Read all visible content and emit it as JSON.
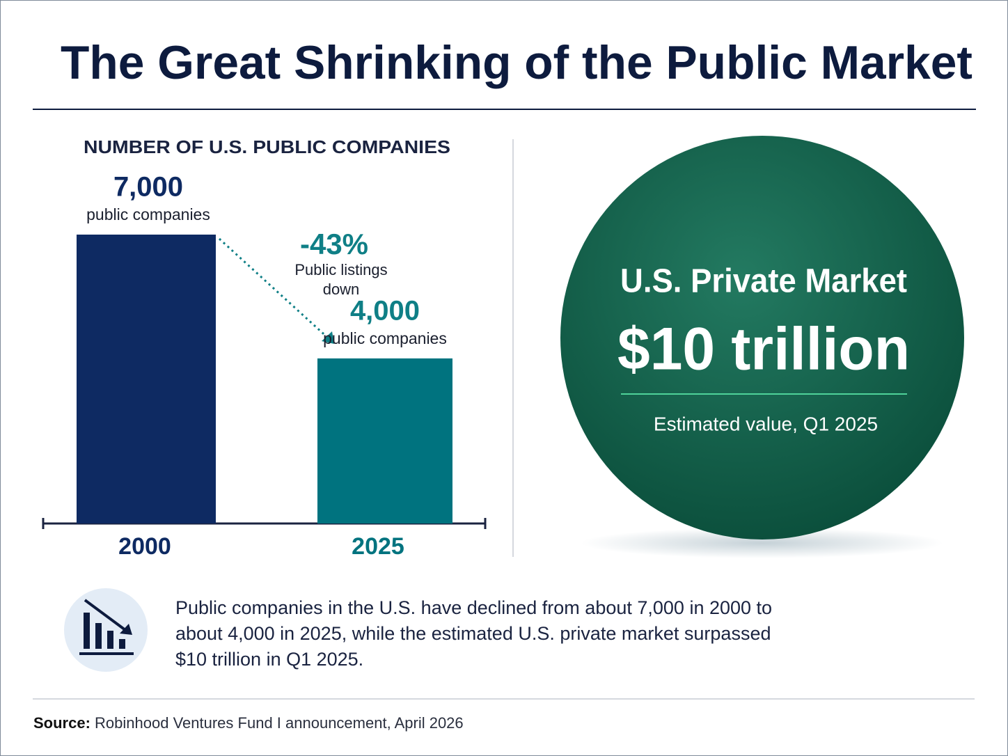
{
  "title": "The Great Shrinking of the Public Market",
  "chart_data": {
    "type": "bar",
    "title": "NUMBER OF U.S. PUBLIC COMPANIES",
    "categories": [
      "2000",
      "2025"
    ],
    "values": [
      7000,
      4000
    ],
    "value_labels": [
      "7,000",
      "4,000"
    ],
    "value_notes": [
      "public companies",
      "public companies"
    ],
    "colors": [
      "#0e2a62",
      "#00737f"
    ],
    "annotation": {
      "change": "-43%",
      "note": "Public listings down"
    }
  },
  "highlight": {
    "title": "U.S. Private Market",
    "value": "$10 trillion",
    "note": "Estimated value, Q1 2025"
  },
  "summary": "Public companies in the U.S. have declined from about 7,000 in 2000 to about 4,000 in 2025, while the estimated U.S. private market surpassed $10 trillion in Q1 2025.",
  "source": {
    "label": "Source:",
    "text": "Robinhood Ventures Fund I announcement, April 2026"
  }
}
